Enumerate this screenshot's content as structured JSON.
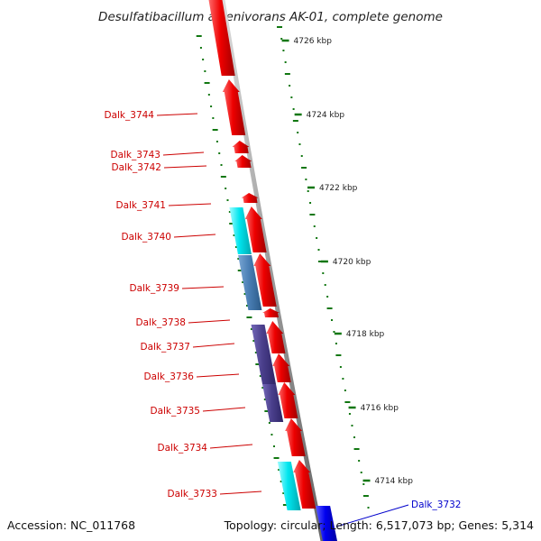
{
  "title": "Desulfatibacillum alkenivorans AK-01, complete genome",
  "footer": {
    "accession": "Accession: NC_011768",
    "topology": "Topology: circular; Length: 6,517,073 bp; Genes: 5,314"
  },
  "colors": {
    "forward_gene": "#ee0000",
    "label_red": "#cc0000",
    "label_blue": "#0000cc",
    "ticks": "#117711",
    "backbone": "#999999",
    "cyan": "#00e5ee",
    "steelblue": "#4a7fb5",
    "slate": "#4a3f8c",
    "blue": "#0000ee"
  },
  "ruler": [
    {
      "label": "4726 kbp"
    },
    {
      "label": "4724 kbp"
    },
    {
      "label": "4722 kbp"
    },
    {
      "label": "4720 kbp"
    },
    {
      "label": "4718 kbp"
    },
    {
      "label": "4716 kbp"
    },
    {
      "label": "4714 kbp"
    }
  ],
  "labels": [
    {
      "name": "Dalk_3744"
    },
    {
      "name": "Dalk_3743"
    },
    {
      "name": "Dalk_3742"
    },
    {
      "name": "Dalk_3741"
    },
    {
      "name": "Dalk_3740"
    },
    {
      "name": "Dalk_3739"
    },
    {
      "name": "Dalk_3738"
    },
    {
      "name": "Dalk_3737"
    },
    {
      "name": "Dalk_3736"
    },
    {
      "name": "Dalk_3735"
    },
    {
      "name": "Dalk_3734"
    },
    {
      "name": "Dalk_3733"
    },
    {
      "name": "Dalk_3732"
    }
  ]
}
